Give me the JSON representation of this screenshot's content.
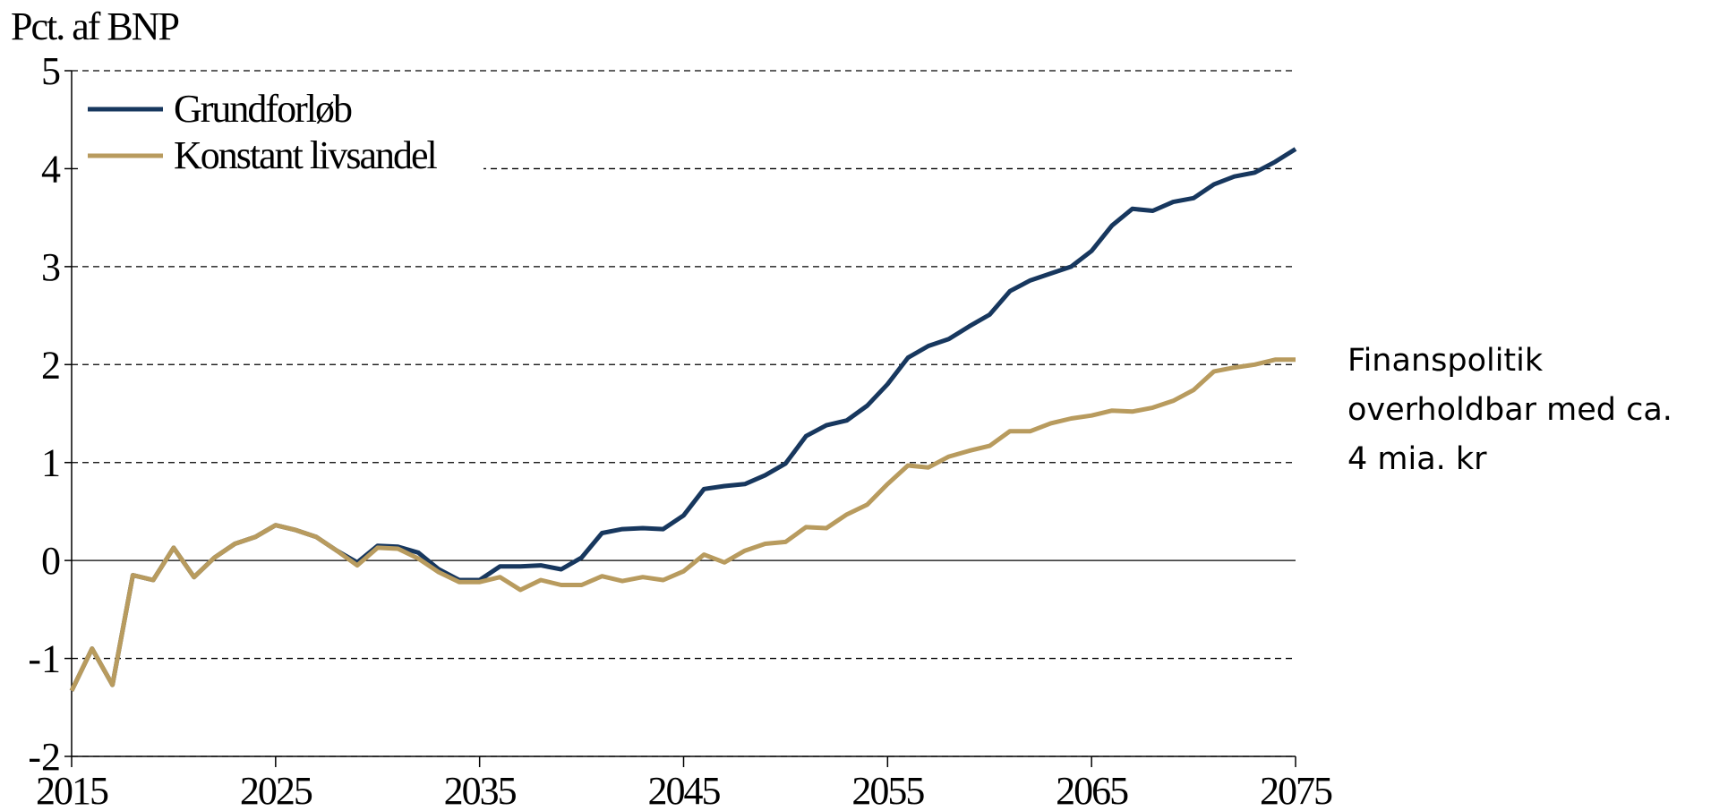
{
  "chart_data": {
    "type": "line",
    "y_axis_label": "Pct. af BNP",
    "annotation": [
      "Finanspolitik",
      "overholdbar med ca.",
      "4 mia. kr"
    ],
    "x": [
      2015,
      2016,
      2017,
      2018,
      2019,
      2020,
      2021,
      2022,
      2023,
      2024,
      2025,
      2026,
      2027,
      2028,
      2029,
      2030,
      2031,
      2032,
      2033,
      2034,
      2035,
      2036,
      2037,
      2038,
      2039,
      2040,
      2041,
      2042,
      2043,
      2044,
      2045,
      2046,
      2047,
      2048,
      2049,
      2050,
      2051,
      2052,
      2053,
      2054,
      2055,
      2056,
      2057,
      2058,
      2059,
      2060,
      2061,
      2062,
      2063,
      2064,
      2065,
      2066,
      2067,
      2068,
      2069,
      2070,
      2071,
      2072,
      2073,
      2074,
      2075
    ],
    "series": [
      {
        "name": "Grundforløb",
        "color": "#17375e",
        "values": [
          -1.33,
          -0.9,
          -1.27,
          -0.15,
          -0.2,
          0.13,
          -0.17,
          0.03,
          0.17,
          0.24,
          0.36,
          0.31,
          0.24,
          0.1,
          -0.02,
          0.15,
          0.14,
          0.08,
          -0.09,
          -0.2,
          -0.2,
          -0.06,
          -0.06,
          -0.05,
          -0.09,
          0.03,
          0.28,
          0.32,
          0.33,
          0.32,
          0.46,
          0.73,
          0.76,
          0.78,
          0.87,
          0.99,
          1.27,
          1.38,
          1.43,
          1.58,
          1.8,
          2.07,
          2.19,
          2.26,
          2.39,
          2.51,
          2.75,
          2.86,
          2.93,
          3.0,
          3.16,
          3.42,
          3.59,
          3.57,
          3.66,
          3.7,
          3.84,
          3.92,
          3.96,
          4.07,
          4.2
        ]
      },
      {
        "name": "Konstant livsandel",
        "color": "#b89b5e",
        "values": [
          -1.33,
          -0.9,
          -1.27,
          -0.15,
          -0.2,
          0.13,
          -0.17,
          0.03,
          0.17,
          0.24,
          0.36,
          0.31,
          0.24,
          0.1,
          -0.05,
          0.13,
          0.12,
          0.02,
          -0.12,
          -0.22,
          -0.22,
          -0.17,
          -0.3,
          -0.2,
          -0.25,
          -0.25,
          -0.16,
          -0.21,
          -0.17,
          -0.2,
          -0.11,
          0.06,
          -0.02,
          0.1,
          0.17,
          0.19,
          0.34,
          0.33,
          0.47,
          0.57,
          0.78,
          0.97,
          0.95,
          1.06,
          1.12,
          1.17,
          1.32,
          1.32,
          1.4,
          1.45,
          1.48,
          1.53,
          1.52,
          1.56,
          1.63,
          1.74,
          1.93,
          1.97,
          2.0,
          2.05,
          2.05
        ]
      }
    ],
    "xlim": [
      2015,
      2075
    ],
    "xticks": [
      2015,
      2025,
      2035,
      2045,
      2055,
      2065,
      2075
    ],
    "ylim": [
      -2,
      5
    ],
    "yticks": [
      -2,
      -1,
      0,
      1,
      2,
      3,
      4,
      5
    ],
    "grid": true,
    "legend": "top-left"
  }
}
